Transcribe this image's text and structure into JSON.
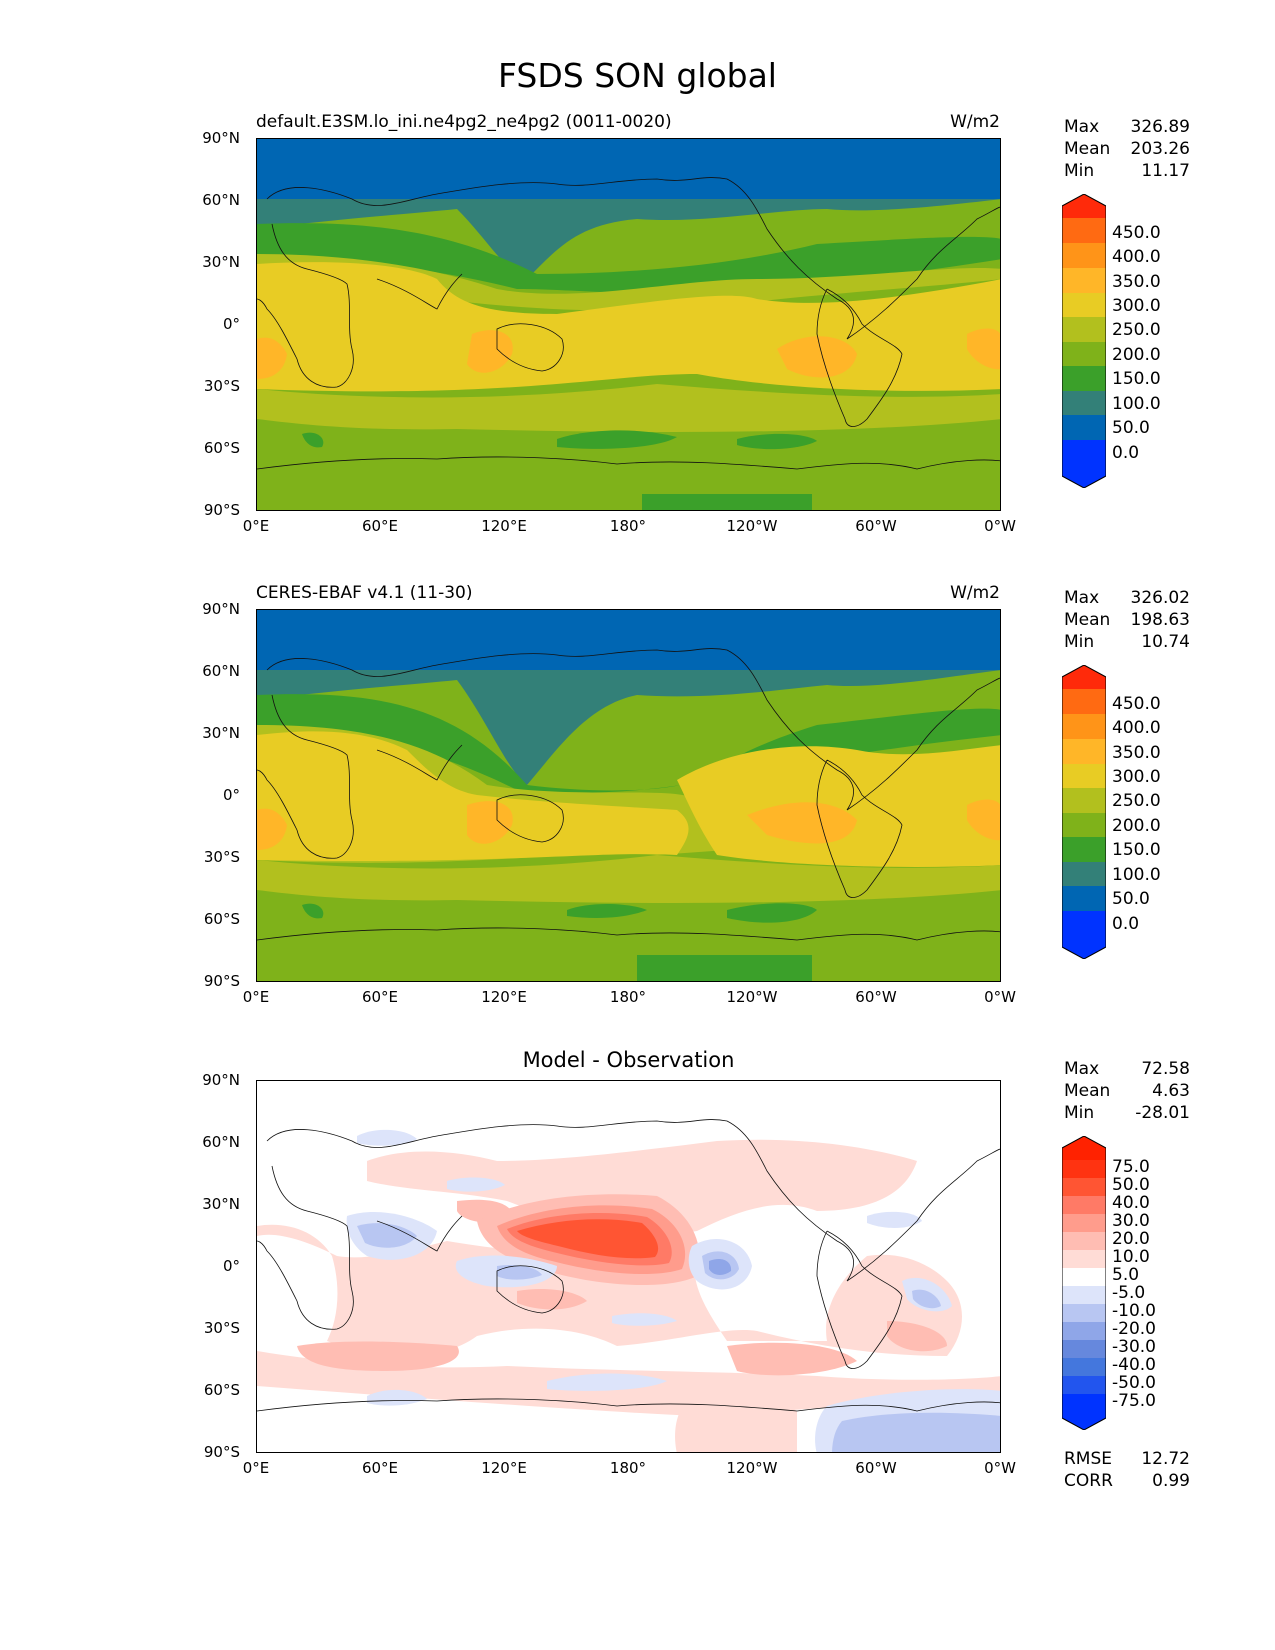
{
  "title": "FSDS SON global",
  "axes": {
    "y_ticks": [
      "90°N",
      "60°N",
      "30°N",
      "0°",
      "30°S",
      "60°S",
      "90°S"
    ],
    "x_ticks": [
      "0°E",
      "60°E",
      "120°E",
      "180°",
      "120°W",
      "60°W",
      "0°W"
    ]
  },
  "panels": [
    {
      "title_left": "default.E3SM.lo_ini.ne4pg2_ne4pg2 (0011-0020)",
      "title_right": "W/m2",
      "stats": [
        {
          "label": "Max",
          "value": "326.89"
        },
        {
          "label": "Mean",
          "value": "203.26"
        },
        {
          "label": "Min",
          "value": "11.17"
        }
      ],
      "colorbar_labels": [
        "450.0",
        "400.0",
        "350.0",
        "300.0",
        "250.0",
        "200.0",
        "150.0",
        "100.0",
        "50.0",
        "0.0"
      ]
    },
    {
      "title_left": "CERES-EBAF v4.1 (11-30)",
      "title_right": "W/m2",
      "stats": [
        {
          "label": "Max",
          "value": "326.02"
        },
        {
          "label": "Mean",
          "value": "198.63"
        },
        {
          "label": "Min",
          "value": "10.74"
        }
      ],
      "colorbar_labels": [
        "450.0",
        "400.0",
        "350.0",
        "300.0",
        "250.0",
        "200.0",
        "150.0",
        "100.0",
        "50.0",
        "0.0"
      ]
    },
    {
      "title_center": "Model - Observation",
      "stats": [
        {
          "label": "Max",
          "value": "72.58"
        },
        {
          "label": "Mean",
          "value": "4.63"
        },
        {
          "label": "Min",
          "value": "-28.01"
        }
      ],
      "colorbar_labels": [
        "75.0",
        "50.0",
        "40.0",
        "30.0",
        "20.0",
        "10.0",
        "5.0",
        "-5.0",
        "-10.0",
        "-20.0",
        "-30.0",
        "-40.0",
        "-50.0",
        "-75.0"
      ],
      "extra_stats": [
        {
          "label": "RMSE",
          "value": "12.72"
        },
        {
          "label": "CORR",
          "value": "0.99"
        }
      ]
    }
  ],
  "colors": {
    "field_scale": [
      "#0033ff",
      "#0066b3",
      "#338078",
      "#3ba02a",
      "#7fb21a",
      "#b2c01e",
      "#e8cc24",
      "#ffb628",
      "#ff9418",
      "#ff6a12",
      "#ff2a0a"
    ],
    "diff_scale": [
      "#0033ff",
      "#2255ee",
      "#4477dd",
      "#6688dd",
      "#8fa6e8",
      "#b8c6f2",
      "#dde4fa",
      "#ffffff",
      "#ffdcd6",
      "#ffbdb3",
      "#ff9c8c",
      "#ff7a66",
      "#ff5533",
      "#ff3311",
      "#ff2200"
    ]
  }
}
